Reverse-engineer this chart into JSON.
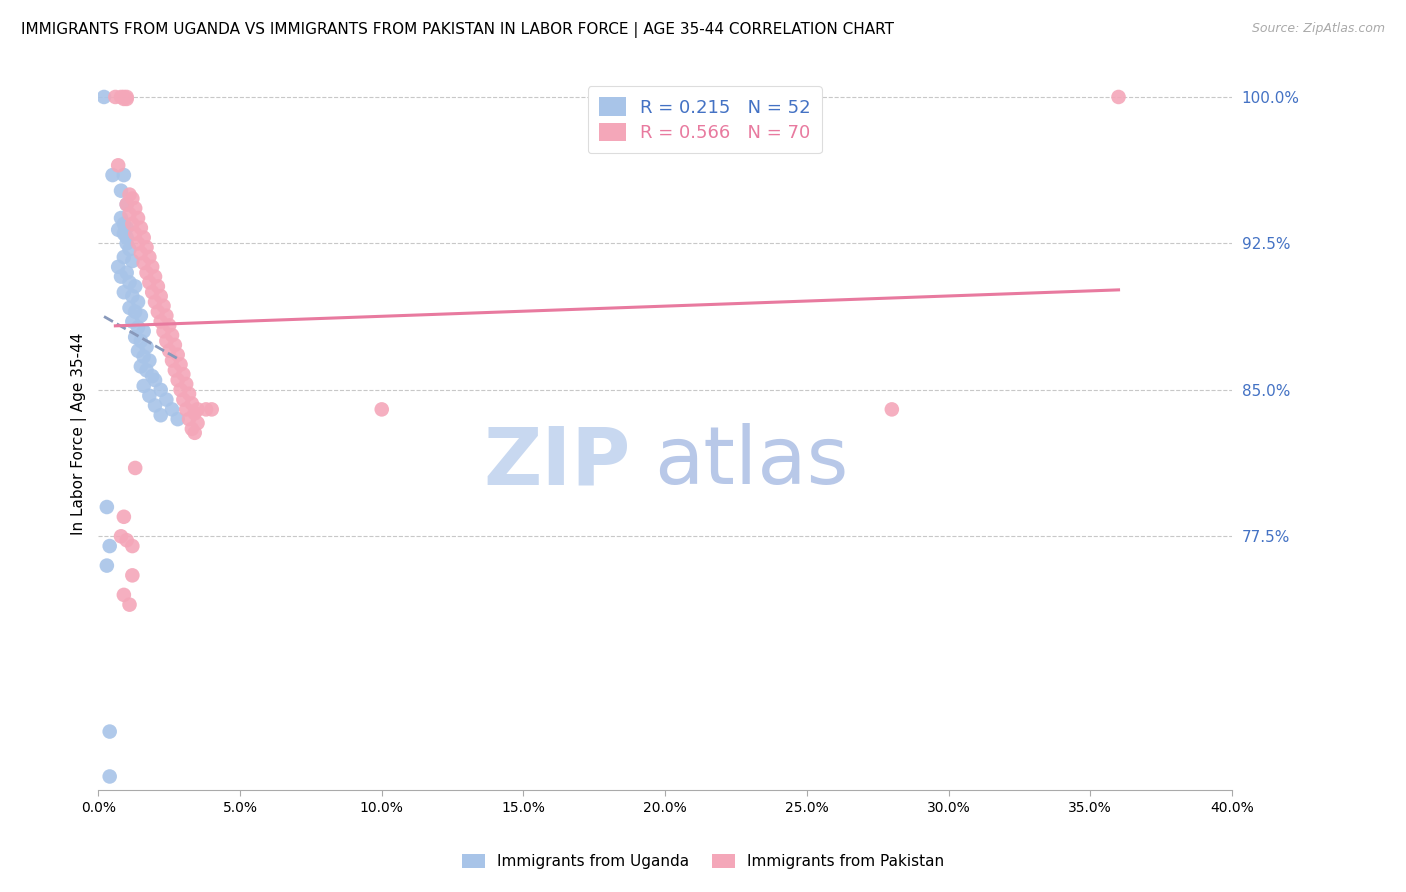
{
  "title": "IMMIGRANTS FROM UGANDA VS IMMIGRANTS FROM PAKISTAN IN LABOR FORCE | AGE 35-44 CORRELATION CHART",
  "source": "Source: ZipAtlas.com",
  "ylabel": "In Labor Force | Age 35-44",
  "xlim": [
    0.0,
    0.4
  ],
  "ylim": [
    0.645,
    1.01
  ],
  "xticks": [
    0.0,
    0.05,
    0.1,
    0.15,
    0.2,
    0.25,
    0.3,
    0.35,
    0.4
  ],
  "xticklabels": [
    "0.0%",
    "5.0%",
    "10.0%",
    "15.0%",
    "20.0%",
    "25.0%",
    "30.0%",
    "35.0%",
    "40.0%"
  ],
  "yticks": [
    0.775,
    0.85,
    0.925,
    1.0
  ],
  "yticklabels": [
    "77.5%",
    "85.0%",
    "92.5%",
    "100.0%"
  ],
  "right_ytick_color": "#4472c4",
  "grid_color": "#c8c8c8",
  "background_color": "#ffffff",
  "uganda_color": "#a8c4e8",
  "pakistan_color": "#f4a7b9",
  "uganda_line_color": "#8899bb",
  "pakistan_line_color": "#e87a9f",
  "uganda_R": 0.215,
  "uganda_N": 52,
  "pakistan_R": 0.566,
  "pakistan_N": 70,
  "watermark_zip": "ZIP",
  "watermark_atlas": "atlas",
  "watermark_color_zip": "#c8d8f0",
  "watermark_color_atlas": "#b8c8e8",
  "uganda_scatter": [
    [
      0.002,
      1.0
    ],
    [
      0.005,
      0.96
    ],
    [
      0.009,
      0.96
    ],
    [
      0.008,
      0.952
    ],
    [
      0.01,
      0.945
    ],
    [
      0.008,
      0.938
    ],
    [
      0.009,
      0.935
    ],
    [
      0.01,
      0.933
    ],
    [
      0.007,
      0.932
    ],
    [
      0.009,
      0.93
    ],
    [
      0.01,
      0.928
    ],
    [
      0.01,
      0.925
    ],
    [
      0.011,
      0.922
    ],
    [
      0.009,
      0.918
    ],
    [
      0.012,
      0.916
    ],
    [
      0.007,
      0.913
    ],
    [
      0.01,
      0.91
    ],
    [
      0.008,
      0.908
    ],
    [
      0.011,
      0.905
    ],
    [
      0.013,
      0.903
    ],
    [
      0.009,
      0.9
    ],
    [
      0.012,
      0.898
    ],
    [
      0.014,
      0.895
    ],
    [
      0.011,
      0.892
    ],
    [
      0.013,
      0.89
    ],
    [
      0.015,
      0.888
    ],
    [
      0.012,
      0.885
    ],
    [
      0.014,
      0.882
    ],
    [
      0.016,
      0.88
    ],
    [
      0.013,
      0.877
    ],
    [
      0.015,
      0.875
    ],
    [
      0.017,
      0.872
    ],
    [
      0.014,
      0.87
    ],
    [
      0.016,
      0.867
    ],
    [
      0.018,
      0.865
    ],
    [
      0.015,
      0.862
    ],
    [
      0.017,
      0.86
    ],
    [
      0.019,
      0.857
    ],
    [
      0.02,
      0.855
    ],
    [
      0.016,
      0.852
    ],
    [
      0.022,
      0.85
    ],
    [
      0.018,
      0.847
    ],
    [
      0.024,
      0.845
    ],
    [
      0.02,
      0.842
    ],
    [
      0.026,
      0.84
    ],
    [
      0.022,
      0.837
    ],
    [
      0.028,
      0.835
    ],
    [
      0.003,
      0.79
    ],
    [
      0.004,
      0.77
    ],
    [
      0.003,
      0.76
    ],
    [
      0.004,
      0.675
    ],
    [
      0.004,
      0.652
    ]
  ],
  "pakistan_scatter": [
    [
      0.006,
      1.0
    ],
    [
      0.008,
      1.0
    ],
    [
      0.009,
      1.0
    ],
    [
      0.009,
      0.999
    ],
    [
      0.01,
      1.0
    ],
    [
      0.01,
      0.999
    ],
    [
      0.007,
      0.965
    ],
    [
      0.011,
      0.95
    ],
    [
      0.012,
      0.948
    ],
    [
      0.01,
      0.945
    ],
    [
      0.013,
      0.943
    ],
    [
      0.011,
      0.94
    ],
    [
      0.014,
      0.938
    ],
    [
      0.012,
      0.935
    ],
    [
      0.015,
      0.933
    ],
    [
      0.013,
      0.93
    ],
    [
      0.016,
      0.928
    ],
    [
      0.014,
      0.925
    ],
    [
      0.017,
      0.923
    ],
    [
      0.015,
      0.92
    ],
    [
      0.018,
      0.918
    ],
    [
      0.016,
      0.915
    ],
    [
      0.019,
      0.913
    ],
    [
      0.017,
      0.91
    ],
    [
      0.02,
      0.908
    ],
    [
      0.018,
      0.905
    ],
    [
      0.021,
      0.903
    ],
    [
      0.019,
      0.9
    ],
    [
      0.022,
      0.898
    ],
    [
      0.02,
      0.895
    ],
    [
      0.023,
      0.893
    ],
    [
      0.021,
      0.89
    ],
    [
      0.024,
      0.888
    ],
    [
      0.022,
      0.885
    ],
    [
      0.025,
      0.883
    ],
    [
      0.023,
      0.88
    ],
    [
      0.026,
      0.878
    ],
    [
      0.024,
      0.875
    ],
    [
      0.027,
      0.873
    ],
    [
      0.025,
      0.87
    ],
    [
      0.028,
      0.868
    ],
    [
      0.026,
      0.865
    ],
    [
      0.029,
      0.863
    ],
    [
      0.027,
      0.86
    ],
    [
      0.03,
      0.858
    ],
    [
      0.028,
      0.855
    ],
    [
      0.031,
      0.853
    ],
    [
      0.029,
      0.85
    ],
    [
      0.032,
      0.848
    ],
    [
      0.03,
      0.845
    ],
    [
      0.033,
      0.843
    ],
    [
      0.031,
      0.84
    ],
    [
      0.034,
      0.838
    ],
    [
      0.032,
      0.835
    ],
    [
      0.035,
      0.833
    ],
    [
      0.033,
      0.83
    ],
    [
      0.034,
      0.828
    ],
    [
      0.013,
      0.81
    ],
    [
      0.009,
      0.785
    ],
    [
      0.008,
      0.775
    ],
    [
      0.01,
      0.773
    ],
    [
      0.012,
      0.77
    ],
    [
      0.012,
      0.755
    ],
    [
      0.009,
      0.745
    ],
    [
      0.011,
      0.74
    ],
    [
      0.1,
      0.84
    ],
    [
      0.28,
      0.84
    ],
    [
      0.36,
      1.0
    ],
    [
      0.035,
      0.84
    ],
    [
      0.038,
      0.84
    ],
    [
      0.04,
      0.84
    ]
  ],
  "title_fontsize": 11,
  "axis_label_fontsize": 11,
  "tick_fontsize": 10,
  "legend_fontsize": 13
}
